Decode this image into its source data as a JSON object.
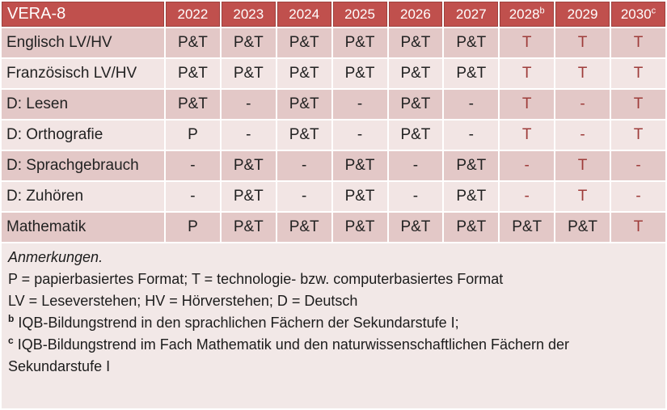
{
  "table": {
    "title": "VERA-8",
    "years": [
      {
        "text": "2022",
        "sup": ""
      },
      {
        "text": "2023",
        "sup": ""
      },
      {
        "text": "2024",
        "sup": ""
      },
      {
        "text": "2025",
        "sup": ""
      },
      {
        "text": "2026",
        "sup": ""
      },
      {
        "text": "2027",
        "sup": ""
      },
      {
        "text": "2028",
        "sup": "b"
      },
      {
        "text": "2029",
        "sup": ""
      },
      {
        "text": "2030",
        "sup": "c"
      }
    ],
    "rows": [
      {
        "label": "Englisch LV/HV",
        "cells": [
          {
            "text": "P&T",
            "red": false
          },
          {
            "text": "P&T",
            "red": false
          },
          {
            "text": "P&T",
            "red": false
          },
          {
            "text": "P&T",
            "red": false
          },
          {
            "text": "P&T",
            "red": false
          },
          {
            "text": "P&T",
            "red": false
          },
          {
            "text": "T",
            "red": true
          },
          {
            "text": "T",
            "red": true
          },
          {
            "text": "T",
            "red": true
          }
        ]
      },
      {
        "label": "Französisch LV/HV",
        "cells": [
          {
            "text": "P&T",
            "red": false
          },
          {
            "text": "P&T",
            "red": false
          },
          {
            "text": "P&T",
            "red": false
          },
          {
            "text": "P&T",
            "red": false
          },
          {
            "text": "P&T",
            "red": false
          },
          {
            "text": "P&T",
            "red": false
          },
          {
            "text": "T",
            "red": true
          },
          {
            "text": "T",
            "red": true
          },
          {
            "text": "T",
            "red": true
          }
        ]
      },
      {
        "label": "D: Lesen",
        "cells": [
          {
            "text": "P&T",
            "red": false
          },
          {
            "text": "-",
            "red": false
          },
          {
            "text": "P&T",
            "red": false
          },
          {
            "text": "-",
            "red": false
          },
          {
            "text": "P&T",
            "red": false
          },
          {
            "text": "-",
            "red": false
          },
          {
            "text": "T",
            "red": true
          },
          {
            "text": "-",
            "red": true
          },
          {
            "text": "T",
            "red": true
          }
        ]
      },
      {
        "label": "D: Orthografie",
        "cells": [
          {
            "text": "P",
            "red": false
          },
          {
            "text": "-",
            "red": false
          },
          {
            "text": "P&T",
            "red": false
          },
          {
            "text": "-",
            "red": false
          },
          {
            "text": "P&T",
            "red": false
          },
          {
            "text": "-",
            "red": false
          },
          {
            "text": "T",
            "red": true
          },
          {
            "text": "-",
            "red": true
          },
          {
            "text": "T",
            "red": true
          }
        ]
      },
      {
        "label": "D: Sprachgebrauch",
        "cells": [
          {
            "text": "-",
            "red": false
          },
          {
            "text": "P&T",
            "red": false
          },
          {
            "text": "-",
            "red": false
          },
          {
            "text": "P&T",
            "red": false
          },
          {
            "text": "-",
            "red": false
          },
          {
            "text": "P&T",
            "red": false
          },
          {
            "text": "-",
            "red": true
          },
          {
            "text": "T",
            "red": true
          },
          {
            "text": "-",
            "red": true
          }
        ]
      },
      {
        "label": "D: Zuhören",
        "cells": [
          {
            "text": "-",
            "red": false
          },
          {
            "text": "P&T",
            "red": false
          },
          {
            "text": "-",
            "red": false
          },
          {
            "text": "P&T",
            "red": false
          },
          {
            "text": "-",
            "red": false
          },
          {
            "text": "P&T",
            "red": false
          },
          {
            "text": "-",
            "red": true
          },
          {
            "text": "T",
            "red": true
          },
          {
            "text": "-",
            "red": true
          }
        ]
      },
      {
        "label": "Mathematik",
        "cells": [
          {
            "text": "P",
            "red": false
          },
          {
            "text": "P&T",
            "red": false
          },
          {
            "text": "P&T",
            "red": false
          },
          {
            "text": "P&T",
            "red": false
          },
          {
            "text": "P&T",
            "red": false
          },
          {
            "text": "P&T",
            "red": false
          },
          {
            "text": "P&T",
            "red": false
          },
          {
            "text": "P&T",
            "red": false
          },
          {
            "text": "T",
            "red": true
          }
        ]
      }
    ]
  },
  "notes": {
    "heading": "Anmerkungen.",
    "line_formats": "P = papierbasiertes Format; T = technologie- bzw. computerbasiertes Format",
    "line_abbrev": "LV = Leseverstehen; HV = Hörverstehen; D = Deutsch",
    "sup_b": "b",
    "line_b": " IQB-Bildungstrend in den sprachlichen Fächern der Sekundarstufe I;",
    "sup_c": "c",
    "line_c": " IQB-Bildungstrend im Fach Mathematik und den naturwissenschaftlichen Fächern der Sekundarstufe I"
  },
  "colors": {
    "header_bg": "#c0504d",
    "header_border": "#9e413e",
    "band_dark": "#e3c8c7",
    "band_light": "#f2e5e4",
    "notes_bg": "#f2e8e7",
    "accent_red_text": "#9e3c3a"
  }
}
